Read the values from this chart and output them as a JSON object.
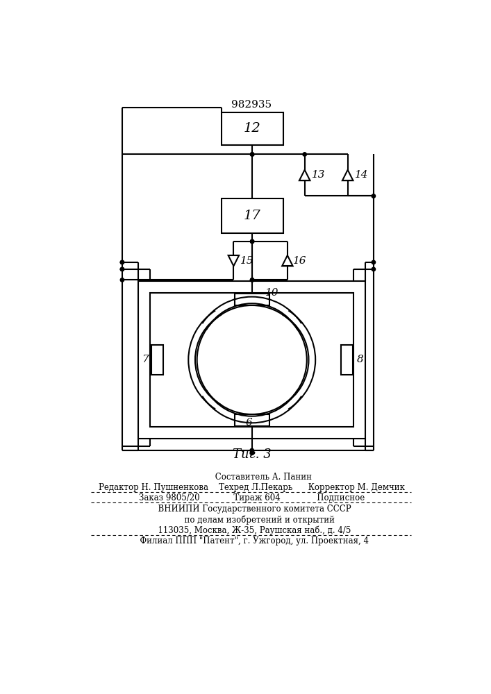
{
  "bg_color": "#ffffff",
  "lw": 1.5,
  "patent_number": "982935",
  "fig_label": "Τиг. 3",
  "footer_lines": [
    "         Составитель А. Панин",
    "Редактор Н. Пушненкова    Техред Л.Пекарь      Корректор М. Демчик",
    "Заказ 9805/20             Тираж 604              Подписное",
    "  ВНИИПИ Государственного комитета СССР",
    "      по делам изобретений и открытий",
    "  113035, Москва, Ж-35, Раушская наб., д. 4/5",
    "  Филиал ППП \"Патент\", г. Ужгород, ул. Проектная, 4"
  ]
}
